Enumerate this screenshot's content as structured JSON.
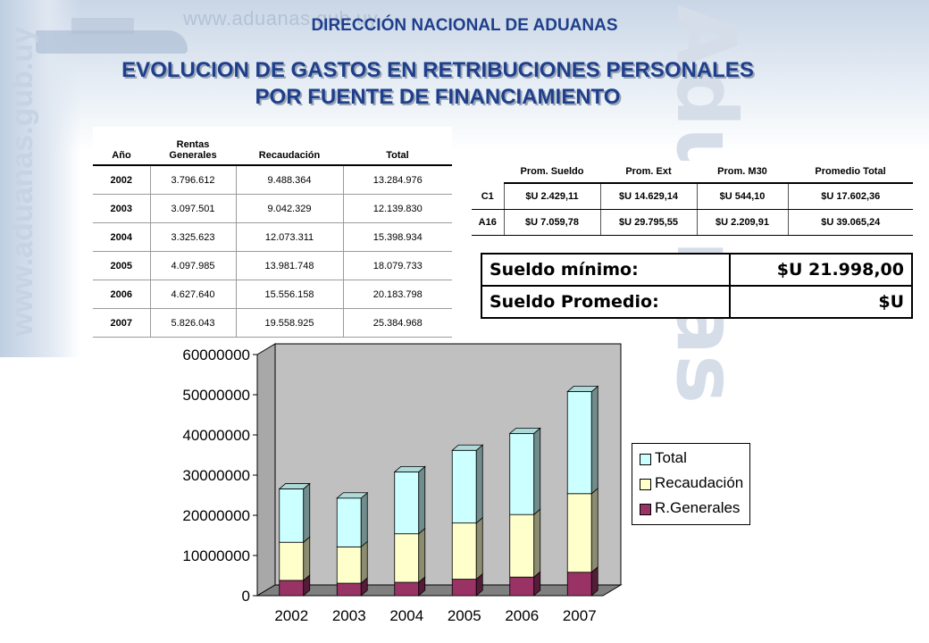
{
  "header": {
    "agency": "DIRECCIÓN NACIONAL DE ADUANAS",
    "title_line1": "EVOLUCION DE GASTOS EN RETRIBUCIONES PERSONALES",
    "title_line2": "POR FUENTE DE FINANCIAMIENTO",
    "watermark_url": "www.aduanas.gub.uy",
    "watermark_side": "www.aduanas.gub.uy",
    "watermark_brand": "Aduanas"
  },
  "table_main": {
    "headers": [
      "Año",
      "Rentas Generales",
      "Recaudación",
      "Total"
    ],
    "rows": [
      [
        "2002",
        "3.796.612",
        "9.488.364",
        "13.284.976"
      ],
      [
        "2003",
        "3.097.501",
        "9.042.329",
        "12.139.830"
      ],
      [
        "2004",
        "3.325.623",
        "12.073.311",
        "15.398.934"
      ],
      [
        "2005",
        "4.097.985",
        "13.981.748",
        "18.079.733"
      ],
      [
        "2006",
        "4.627.640",
        "15.556.158",
        "20.183.798"
      ],
      [
        "2007",
        "5.826.043",
        "19.558.925",
        "25.384.968"
      ]
    ]
  },
  "table_avg": {
    "headers": [
      "",
      "Prom. Sueldo",
      "Prom. Ext",
      "Prom. M30",
      "Promedio Total"
    ],
    "rows": [
      [
        "C1",
        "$U 2.429,11",
        "$U 14.629,14",
        "$U 544,10",
        "$U 17.602,36"
      ],
      [
        "A16",
        "$U 7.059,78",
        "$U 29.795,55",
        "$U 2.209,91",
        "$U 39.065,24"
      ]
    ]
  },
  "salary_box": {
    "min_label": "Sueldo mínimo:",
    "min_value": "$U 21.998,00",
    "avg_label": "Sueldo Promedio:",
    "avg_value": "$U"
  },
  "chart_data": {
    "type": "bar",
    "stacked": true,
    "three_d": true,
    "categories": [
      "2002",
      "2003",
      "2004",
      "2005",
      "2006",
      "2007"
    ],
    "series": [
      {
        "name": "R.Generales",
        "values": [
          3796612,
          3097501,
          3325623,
          4097985,
          4627640,
          5826043
        ],
        "color": "#993366"
      },
      {
        "name": "Recaudación",
        "values": [
          9488364,
          9042329,
          12073311,
          13981748,
          15556158,
          19558925
        ],
        "color": "#ffffcc"
      },
      {
        "name": "Total",
        "values": [
          13284976,
          12139830,
          15398934,
          18079733,
          20183798,
          25384968
        ],
        "color": "#ccffff"
      }
    ],
    "legend_order": [
      "Total",
      "Recaudación",
      "R.Generales"
    ],
    "yticks": [
      "0",
      "10000000",
      "20000000",
      "30000000",
      "40000000",
      "50000000",
      "60000000"
    ],
    "ylim": [
      0,
      60000000
    ],
    "title": "",
    "xlabel": "",
    "ylabel": "",
    "grid": false,
    "legend_position": "right",
    "wall_color": "#c0c0c0",
    "floor_color": "#808080"
  }
}
